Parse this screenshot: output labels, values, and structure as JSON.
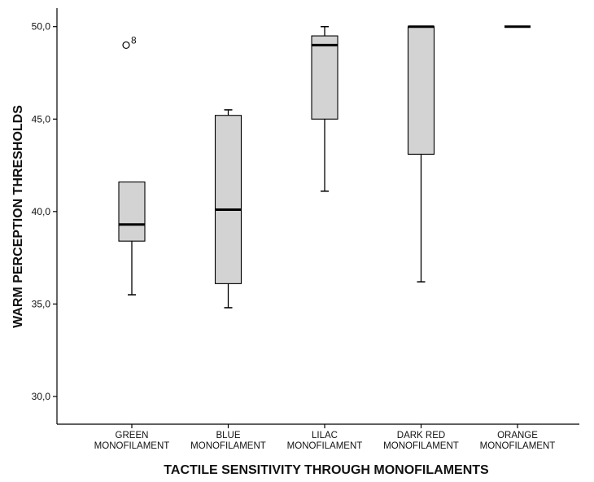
{
  "chart_data": {
    "type": "boxplot",
    "title": "",
    "xlabel": "TACTILE SENSITIVITY THROUGH MONOFILAMENTS",
    "ylabel": "WARM PERCEPTION THRESHOLDS",
    "ylim": [
      28.5,
      51
    ],
    "yticks": [
      30,
      35,
      40,
      45,
      50
    ],
    "ytick_labels": [
      "30,0",
      "35,0",
      "40,0",
      "45,0",
      "50,0"
    ],
    "grid": false,
    "categories": [
      [
        "GREEN",
        "MONOFILAMENT"
      ],
      [
        "BLUE",
        "MONOFILAMENT"
      ],
      [
        "LILAC",
        "MONOFILAMENT"
      ],
      [
        "DARK RED",
        "MONOFILAMENT"
      ],
      [
        "ORANGE",
        "MONOFILAMENT"
      ]
    ],
    "boxes": [
      {
        "min": 35.5,
        "q1": 38.4,
        "median": 39.3,
        "q3": 41.6,
        "max": 41.6,
        "outliers": [
          {
            "value": 49.0,
            "label": "8"
          }
        ]
      },
      {
        "min": 34.8,
        "q1": 36.1,
        "median": 40.1,
        "q3": 45.2,
        "max": 45.5,
        "outliers": []
      },
      {
        "min": 41.1,
        "q1": 45.0,
        "median": 49.0,
        "q3": 49.5,
        "max": 50.0,
        "outliers": []
      },
      {
        "min": 36.2,
        "q1": 43.1,
        "median": 50.0,
        "q3": 50.0,
        "max": 50.0,
        "outliers": []
      },
      {
        "min": 50.0,
        "q1": 50.0,
        "median": 50.0,
        "q3": 50.0,
        "max": 50.0,
        "outliers": []
      }
    ],
    "colors": {
      "box_fill": "#d3d3d3",
      "stroke": "#000000",
      "background": "#ffffff"
    }
  }
}
